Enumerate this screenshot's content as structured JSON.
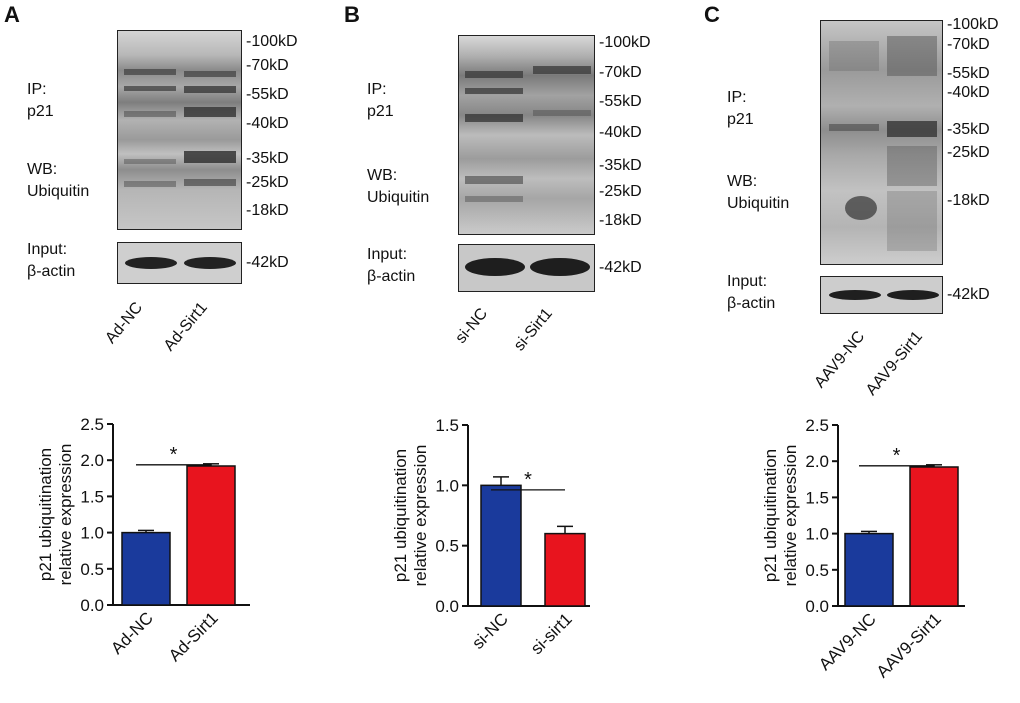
{
  "panels": [
    {
      "label": "A",
      "ip_label": "IP:",
      "ip_target": "p21",
      "wb_label": "WB:",
      "wb_target": "Ubiquitin",
      "input_label": "Input:",
      "input_target": "β-actin",
      "markers": [
        "-100kD",
        "-70kD",
        "-55kD",
        "-40kD",
        "-35kD",
        "-25kD",
        "-18kD"
      ],
      "input_marker": "-42kD",
      "lanes": [
        "Ad-NC",
        "Ad-Sirt1"
      ]
    },
    {
      "label": "B",
      "ip_label": "IP:",
      "ip_target": "p21",
      "wb_label": "WB:",
      "wb_target": "Ubiquitin",
      "input_label": "Input:",
      "input_target": "β-actin",
      "markers": [
        "-100kD",
        "-70kD",
        "-55kD",
        "-40kD",
        "-35kD",
        "-25kD",
        "-18kD"
      ],
      "input_marker": "-42kD",
      "lanes": [
        "si-NC",
        "si-Sirt1"
      ]
    },
    {
      "label": "C",
      "ip_label": "IP:",
      "ip_target": "p21",
      "wb_label": "WB:",
      "wb_target": "Ubiquitin",
      "input_label": "Input:",
      "input_target": "β-actin",
      "markers": [
        "-100kD",
        "-70kD",
        "-55kD",
        "-40kD",
        "-35kD",
        "-25kD",
        "-18kD"
      ],
      "input_marker": "-42kD",
      "lanes": [
        "AAV9-NC",
        "AAV9-Sirt1"
      ]
    }
  ],
  "chart_data": [
    {
      "type": "bar",
      "title": "",
      "ylabel": [
        "p21 ubiquitination",
        "relative expression"
      ],
      "categories": [
        "Ad-NC",
        "Ad-Sirt1"
      ],
      "values": [
        1.0,
        1.92
      ],
      "errors": [
        0.03,
        0.03
      ],
      "colors": [
        "#1a3a9c",
        "#e8141e"
      ],
      "ylim": [
        0,
        2.5
      ],
      "yticks": [
        "0.0",
        "0.5",
        "1.0",
        "1.5",
        "2.0",
        "2.5"
      ],
      "significance": "*"
    },
    {
      "type": "bar",
      "title": "",
      "ylabel": [
        "p21 ubiquitination",
        "relative expression"
      ],
      "categories": [
        "si-NC",
        "si-sirt1"
      ],
      "values": [
        1.0,
        0.6
      ],
      "errors": [
        0.07,
        0.06
      ],
      "colors": [
        "#1a3a9c",
        "#e8141e"
      ],
      "ylim": [
        0,
        1.5
      ],
      "yticks": [
        "0.0",
        "0.5",
        "1.0",
        "1.5"
      ],
      "significance": "*"
    },
    {
      "type": "bar",
      "title": "",
      "ylabel": [
        "p21 ubiquitination",
        "relative expression"
      ],
      "categories": [
        "AAV9-NC",
        "AAV9-Sirt1"
      ],
      "values": [
        1.0,
        1.92
      ],
      "errors": [
        0.03,
        0.03
      ],
      "colors": [
        "#1a3a9c",
        "#e8141e"
      ],
      "ylim": [
        0,
        2.5
      ],
      "yticks": [
        "0.0",
        "0.5",
        "1.0",
        "1.5",
        "2.0",
        "2.5"
      ],
      "significance": "*"
    }
  ]
}
